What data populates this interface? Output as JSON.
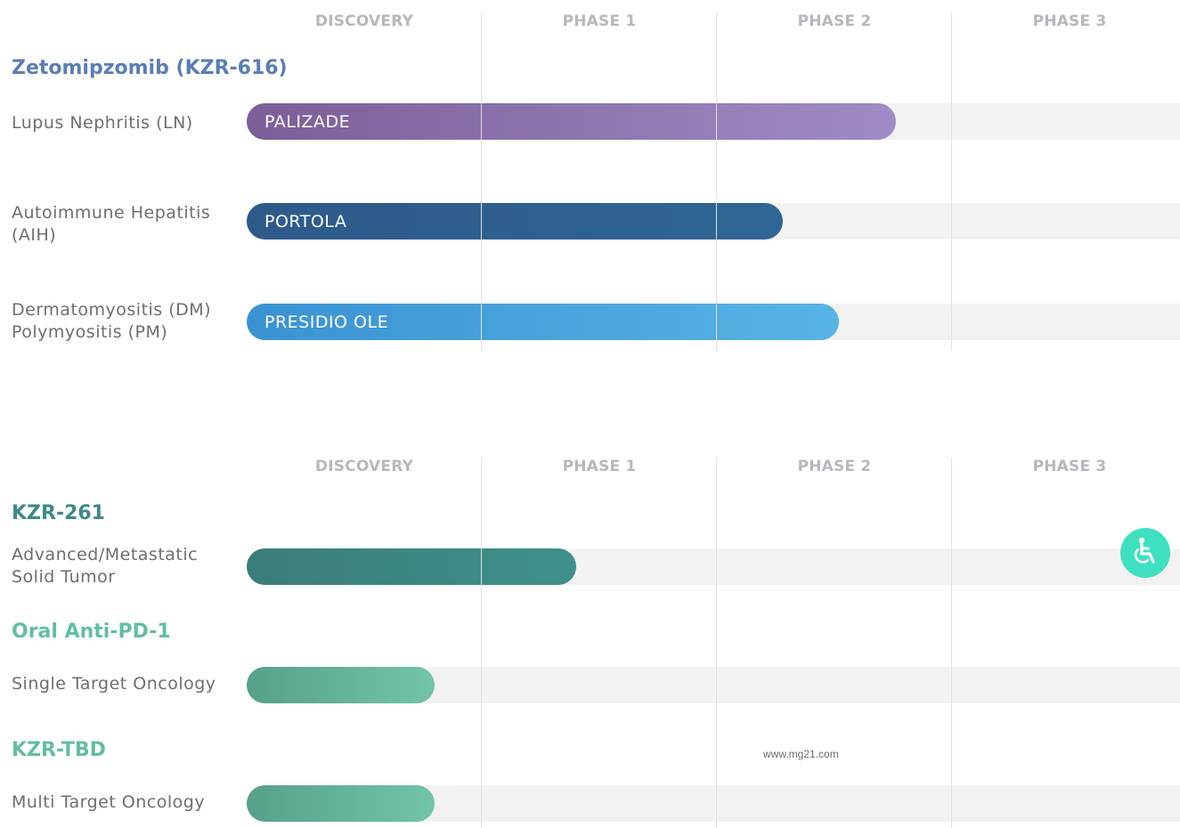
{
  "chart_data": [
    {
      "type": "bar",
      "phases": [
        "DISCOVERY",
        "PHASE 1",
        "PHASE 2",
        "PHASE 3"
      ],
      "drugs": [
        {
          "name": "Zetomipzomib (KZR-616)",
          "color": "#5a7db5",
          "programs": [
            {
              "indication": [
                "Lupus Nephritis (LN)"
              ],
              "trial": "PALIZADE",
              "progress": 2.76,
              "gradient": [
                "#7c5e98",
                "#a08bc6"
              ]
            },
            {
              "indication": [
                "Autoimmune Hepatitis",
                "(AIH)"
              ],
              "trial": "PORTOLA",
              "progress": 2.28,
              "gradient": [
                "#2e5a8a",
                "#2f6594"
              ]
            },
            {
              "indication": [
                "Dermatomyositis (DM)",
                "Polymyositis (PM)"
              ],
              "trial": "PRESIDIO OLE",
              "progress": 2.52,
              "gradient": [
                "#3a92d2",
                "#58b4e6"
              ]
            }
          ]
        }
      ]
    },
    {
      "type": "bar",
      "phases": [
        "DISCOVERY",
        "PHASE 1",
        "PHASE 2",
        "PHASE 3"
      ],
      "drugs": [
        {
          "name": "KZR-261",
          "color": "#3d8a86",
          "programs": [
            {
              "indication": [
                "Advanced/Metastatic",
                "Solid Tumor"
              ],
              "trial": "",
              "progress": 1.4,
              "gradient": [
                "#3a7d7a",
                "#3f908b"
              ]
            }
          ]
        },
        {
          "name": "Oral Anti-PD-1",
          "color": "#62bda5",
          "programs": [
            {
              "indication": [
                "Single Target Oncology"
              ],
              "trial": "",
              "progress": 0.8,
              "gradient": [
                "#57a08c",
                "#72c4aa"
              ]
            }
          ]
        },
        {
          "name": "KZR-TBD",
          "color": "#62bda5",
          "programs": [
            {
              "indication": [
                "Multi Target Oncology"
              ],
              "trial": "",
              "progress": 0.8,
              "gradient": [
                "#57a08c",
                "#72c4aa"
              ]
            }
          ]
        }
      ]
    }
  ],
  "watermark": "www.mg21.com",
  "accessibility": {
    "icon": "wheelchair-icon",
    "color": "#3fe0c0"
  }
}
